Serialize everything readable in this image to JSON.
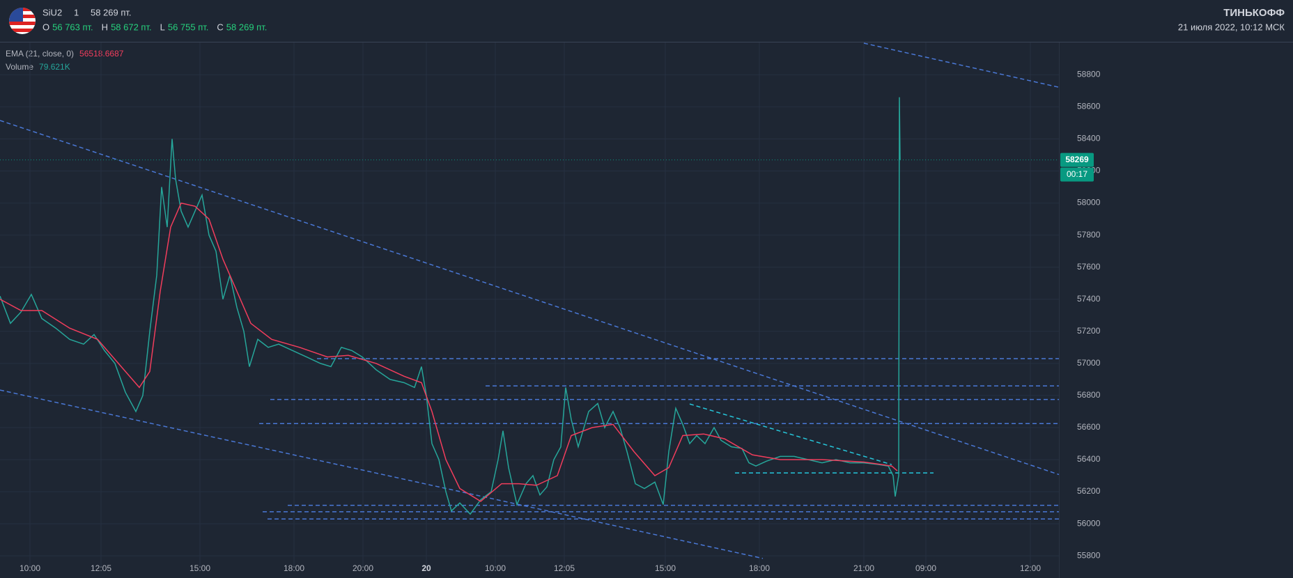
{
  "header": {
    "symbol": "SiU2",
    "interval": "1",
    "last": "58 269 пт.",
    "ohlc": [
      {
        "label": "O",
        "value": "56 763 пт."
      },
      {
        "label": "H",
        "value": "58 672 пт."
      },
      {
        "label": "L",
        "value": "56 755 пт."
      },
      {
        "label": "C",
        "value": "58 269 пт."
      }
    ],
    "brand": "ТИНЬКОФФ",
    "datetime": "21 июля 2022, 10:12 МСК"
  },
  "chart_data": {
    "type": "line",
    "indicators": [
      {
        "name": "EMA (21, close, 0)",
        "value": "56518.6687"
      },
      {
        "name": "Volume",
        "value": "79.621K"
      }
    ],
    "series": [
      {
        "color": "#26a69a",
        "x": [
          0,
          15,
          30,
          45,
          60,
          80,
          100,
          120,
          135,
          150,
          165,
          180,
          195,
          205,
          215,
          225,
          232,
          240,
          247,
          252,
          260,
          270,
          280,
          290,
          300,
          310,
          320,
          330,
          340,
          350,
          358,
          370,
          385,
          400,
          420,
          440,
          460,
          475,
          490,
          505,
          520,
          540,
          560,
          580,
          595,
          605,
          612,
          620,
          630,
          640,
          648,
          660,
          675,
          690,
          705,
          715,
          722,
          730,
          742,
          755,
          765,
          775,
          785,
          795,
          805,
          812,
          820,
          830,
          845,
          858,
          868,
          880,
          890,
          900,
          912,
          925,
          940,
          952,
          960,
          970,
          980,
          990,
          1000,
          1012,
          1025,
          1035,
          1050,
          1065,
          1075,
          1085,
          1100,
          1120,
          1140,
          1160,
          1180,
          1200,
          1220,
          1240,
          1260,
          1275,
          1282,
          1285,
          1290,
          1291,
          1292
        ],
        "values": [
          57420,
          57250,
          57320,
          57430,
          57280,
          57220,
          57150,
          57120,
          57180,
          57080,
          57000,
          56820,
          56700,
          56800,
          57200,
          57550,
          58100,
          57850,
          58400,
          58150,
          57950,
          57850,
          57950,
          58050,
          57800,
          57700,
          57400,
          57550,
          57350,
          57200,
          56980,
          57150,
          57100,
          57120,
          57080,
          57040,
          57000,
          56980,
          57100,
          57080,
          57040,
          56960,
          56900,
          56880,
          56850,
          56980,
          56800,
          56500,
          56400,
          56200,
          56080,
          56130,
          56060,
          56150,
          56200,
          56400,
          56580,
          56350,
          56120,
          56250,
          56300,
          56180,
          56230,
          56400,
          56480,
          56850,
          56650,
          56480,
          56700,
          56750,
          56600,
          56700,
          56600,
          56450,
          56250,
          56220,
          56260,
          56120,
          56450,
          56720,
          56620,
          56500,
          56550,
          56500,
          56600,
          56520,
          56480,
          56470,
          56380,
          56360,
          56390,
          56420,
          56420,
          56400,
          56380,
          56400,
          56380,
          56380,
          56370,
          56360,
          56300,
          56170,
          56300,
          58660,
          58269
        ]
      },
      {
        "name": "EMA (21, close, 0)",
        "color": "#f23d5c",
        "x": [
          0,
          30,
          60,
          100,
          140,
          180,
          200,
          215,
          230,
          245,
          260,
          280,
          300,
          320,
          340,
          360,
          390,
          430,
          470,
          500,
          540,
          580,
          605,
          620,
          640,
          660,
          690,
          720,
          745,
          770,
          800,
          820,
          850,
          880,
          910,
          940,
          960,
          980,
          1010,
          1040,
          1080,
          1120,
          1180,
          1240,
          1280,
          1288
        ],
        "values": [
          57400,
          57330,
          57330,
          57220,
          57150,
          56950,
          56850,
          56950,
          57450,
          57850,
          58000,
          57980,
          57900,
          57650,
          57450,
          57250,
          57150,
          57100,
          57040,
          57050,
          57000,
          56920,
          56880,
          56700,
          56400,
          56220,
          56140,
          56250,
          56250,
          56240,
          56300,
          56550,
          56600,
          56620,
          56450,
          56300,
          56350,
          56550,
          56560,
          56530,
          56430,
          56400,
          56400,
          56385,
          56360,
          56330
        ]
      }
    ],
    "levels": [
      {
        "value": 57030,
        "color": "#4a78d6",
        "x": [
          455,
          1520
        ]
      },
      {
        "value": 56860,
        "color": "#4a78d6",
        "x": [
          697,
          1520
        ]
      },
      {
        "value": 56775,
        "color": "#4a78d6",
        "x": [
          388,
          1520
        ]
      },
      {
        "value": 56625,
        "color": "#4a78d6",
        "x": [
          372,
          1520
        ]
      },
      {
        "value": 56115,
        "color": "#4a78d6",
        "x": [
          413,
          1520
        ]
      },
      {
        "value": 56075,
        "color": "#4a78d6",
        "x": [
          377,
          1520
        ]
      },
      {
        "value": 56030,
        "color": "#4a78d6",
        "x": [
          384,
          1520
        ]
      },
      {
        "value": 56317,
        "color": "#26c6da",
        "x": [
          1055,
          1340
        ]
      }
    ],
    "trendlines": [
      {
        "color": "#4a78d6",
        "x": [
          0,
          1520
        ],
        "values": [
          58515,
          56307
        ]
      },
      {
        "color": "#4a78d6",
        "x": [
          0,
          1095
        ],
        "values": [
          56834,
          55784
        ]
      },
      {
        "color": "#4a78d6",
        "x": [
          1240,
          1520
        ],
        "values": [
          58997,
          58722
        ]
      },
      {
        "color": "#26c6da",
        "x": [
          990,
          1280
        ],
        "values": [
          56747,
          56369
        ]
      }
    ],
    "last_price": 58269,
    "countdown": "00:17",
    "last_color": "#089981",
    "xlim": [
      0,
      1520
    ],
    "ylim": [
      55750,
      59000
    ],
    "yticks": [
      55800,
      56000,
      56200,
      56400,
      56600,
      56800,
      57000,
      57200,
      57400,
      57600,
      57800,
      58000,
      58200,
      58400,
      58600,
      58800
    ],
    "xticks": [
      {
        "value": 43,
        "label": "10:00"
      },
      {
        "value": 145,
        "label": "12:05"
      },
      {
        "value": 287,
        "label": "15:00"
      },
      {
        "value": 422,
        "label": "18:00"
      },
      {
        "value": 521,
        "label": "20:00"
      },
      {
        "value": 612,
        "label": "20"
      },
      {
        "value": 711,
        "label": "10:00"
      },
      {
        "value": 810,
        "label": "12:05"
      },
      {
        "value": 955,
        "label": "15:00"
      },
      {
        "value": 1090,
        "label": "18:00"
      },
      {
        "value": 1240,
        "label": "21:00"
      },
      {
        "value": 1329,
        "label": "09:00"
      },
      {
        "value": 1479,
        "label": "12:00"
      }
    ],
    "grid": true
  }
}
